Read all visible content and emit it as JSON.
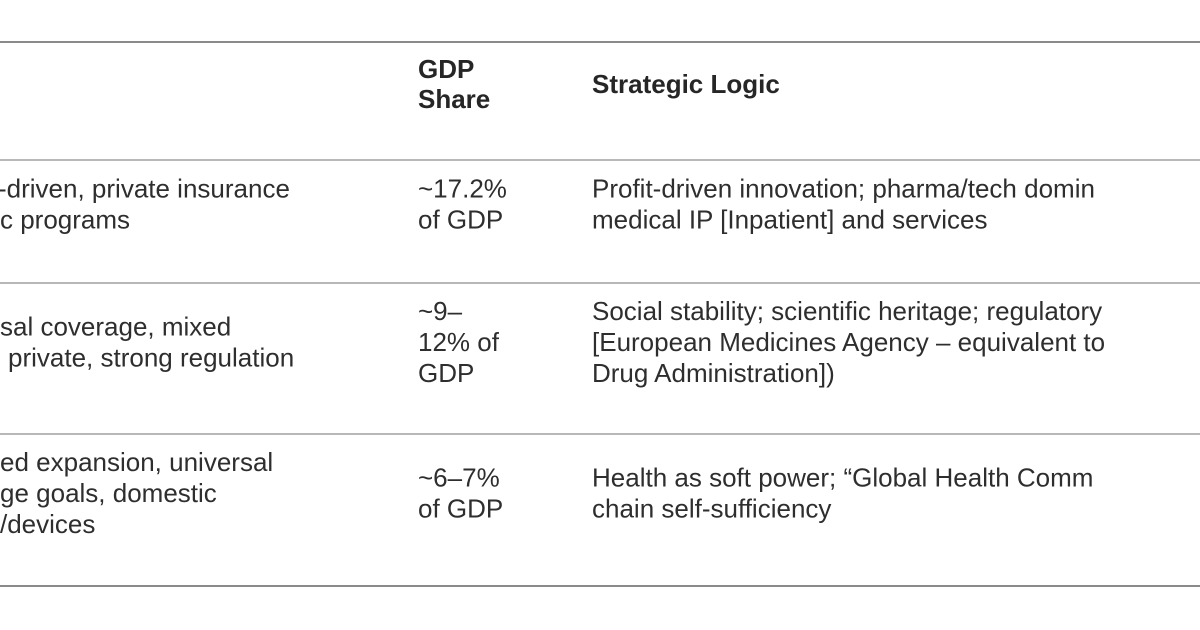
{
  "table": {
    "header": {
      "gdp_share": [
        "GDP",
        "Share"
      ],
      "strategic_logic": "Strategic Logic"
    },
    "rows": [
      [
        [
          "-driven, private insurance",
          "c programs"
        ],
        [
          "~17.2%",
          "of GDP"
        ],
        [
          "Profit-driven innovation; pharma/tech domin",
          "medical IP [Inpatient] and services"
        ]
      ],
      [
        [
          "sal coverage, mixed",
          "private, strong regulation"
        ],
        [
          "~9–",
          "12% of",
          "GDP"
        ],
        [
          "Social stability; scientific heritage; regulatory",
          "[European Medicines Agency – equivalent to",
          "Drug Administration])"
        ]
      ],
      [
        [
          "ed expansion, universal",
          "ge goals, domestic",
          "/devices"
        ],
        [
          "~6–7%",
          "of GDP"
        ],
        [
          "Health as soft power; “Global Health Comm",
          "chain self-sufficiency"
        ]
      ]
    ]
  }
}
